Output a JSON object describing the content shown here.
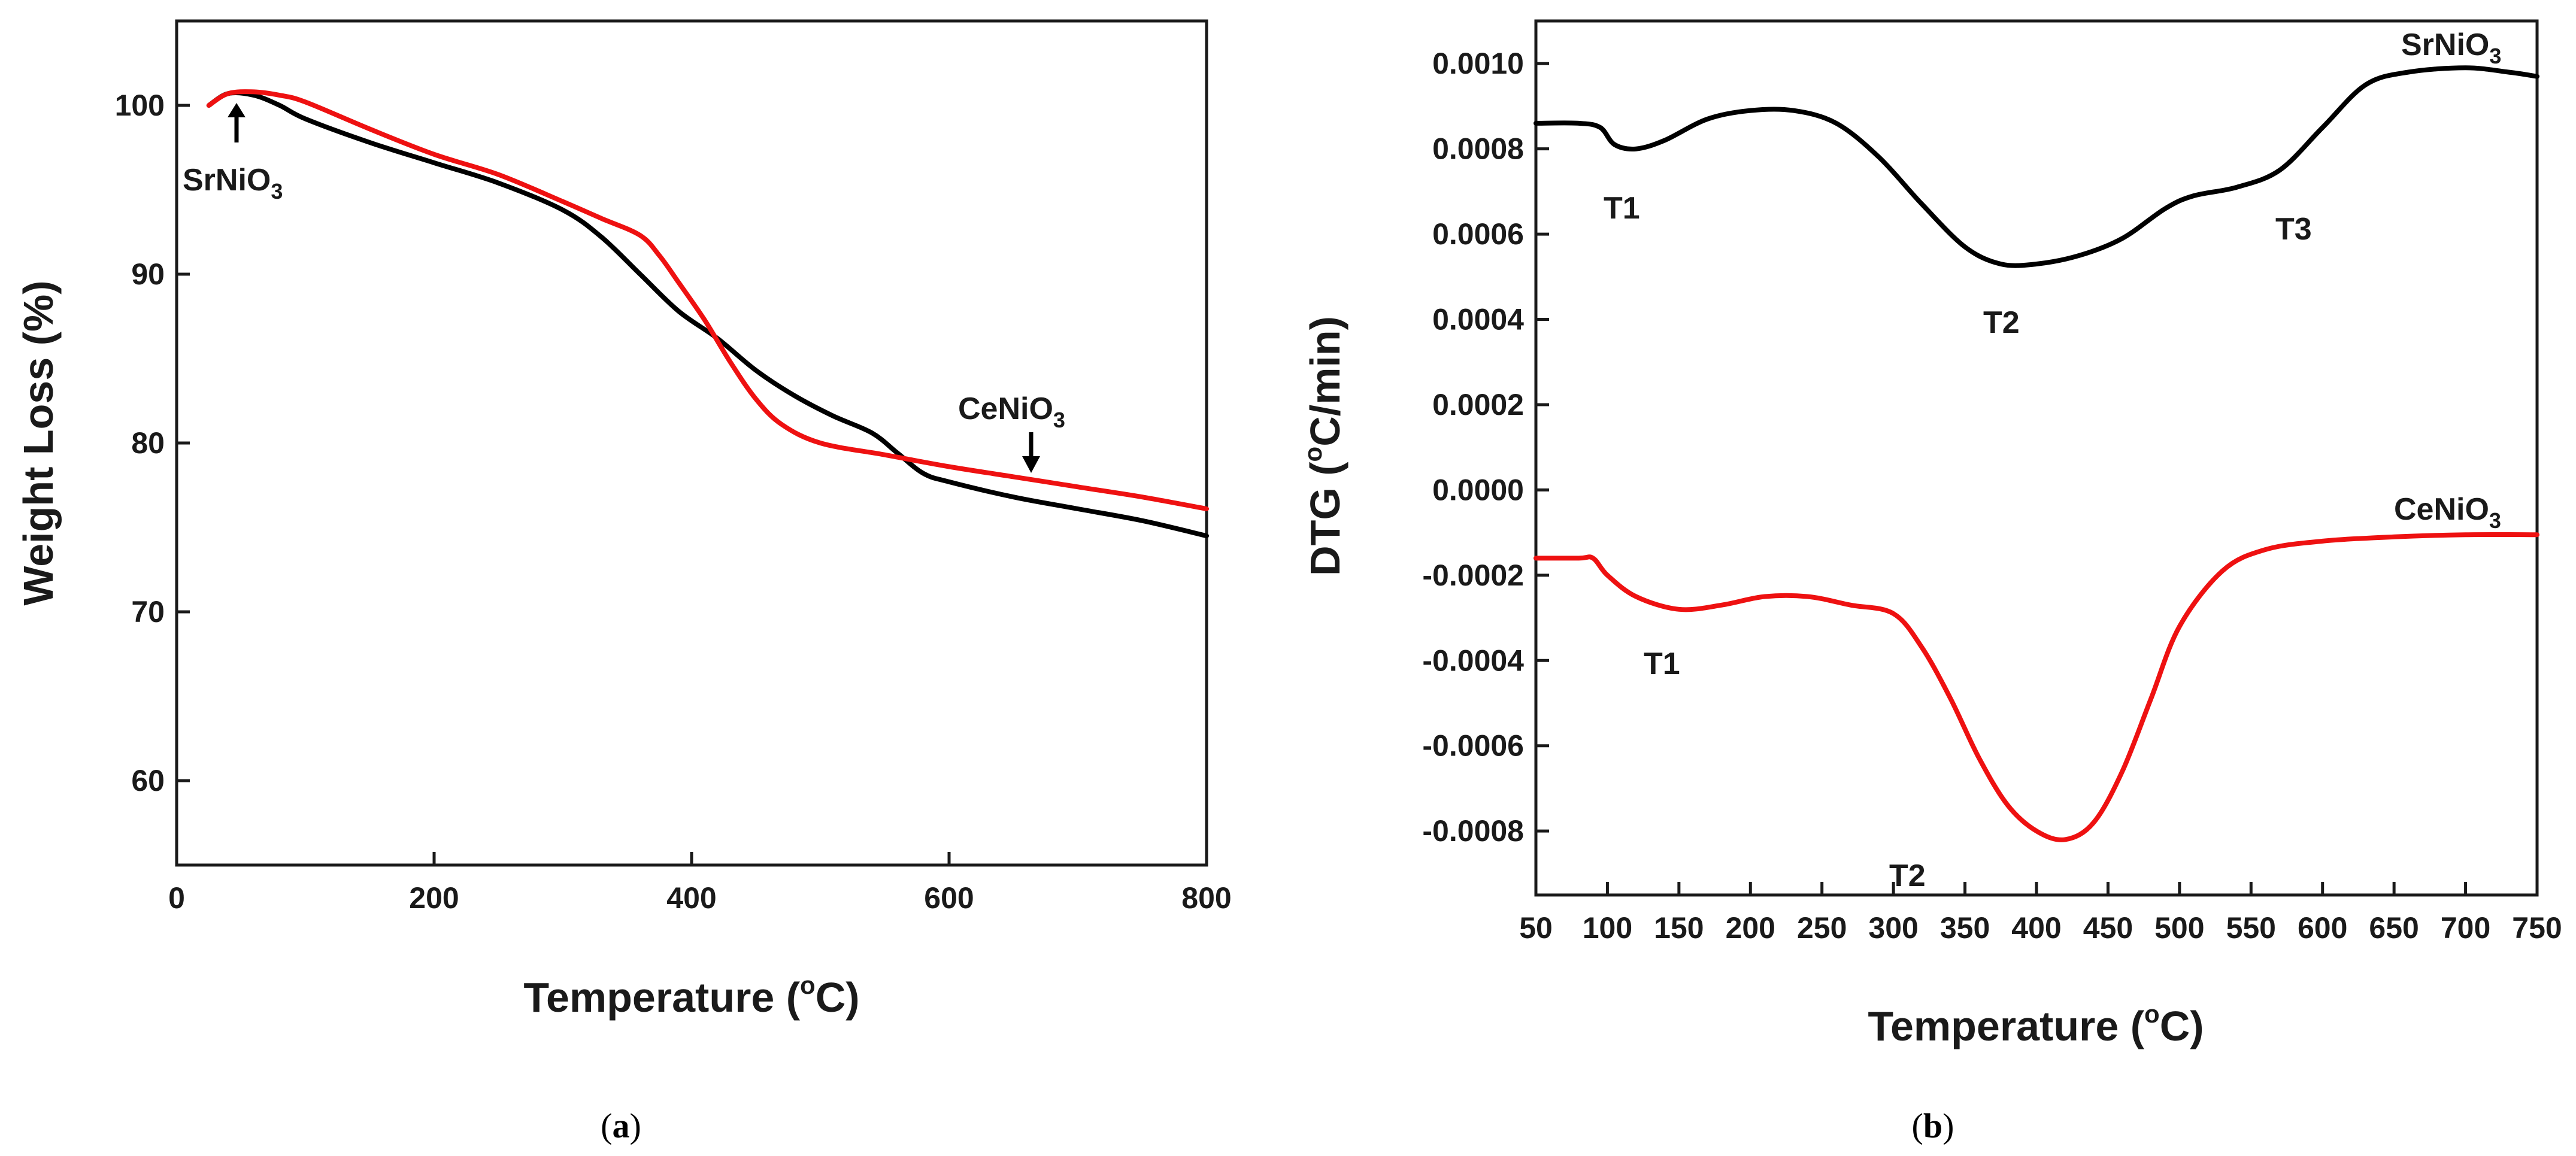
{
  "chart_data": [
    {
      "type": "line",
      "panel": "a",
      "xlabel": "Temperature (°C)",
      "xlabel_main": "Temperature (",
      "xlabel_sup": "o",
      "xlabel_end": "C)",
      "ylabel": "Weight Loss (%)",
      "xlim": [
        0,
        800
      ],
      "ylim": [
        55,
        105
      ],
      "xticks": [
        0,
        200,
        400,
        600,
        800
      ],
      "yticks": [
        60,
        70,
        80,
        90,
        100
      ],
      "series": [
        {
          "name": "SrNiO3",
          "color": "#000000",
          "x": [
            25,
            40,
            60,
            80,
            100,
            150,
            200,
            250,
            300,
            330,
            360,
            390,
            420,
            450,
            480,
            510,
            540,
            560,
            580,
            600,
            650,
            700,
            750,
            800
          ],
          "y": [
            100.0,
            100.7,
            100.6,
            100.0,
            99.2,
            97.8,
            96.6,
            95.4,
            93.8,
            92.2,
            90.0,
            87.8,
            86.2,
            84.3,
            82.8,
            81.6,
            80.6,
            79.4,
            78.2,
            77.7,
            76.8,
            76.1,
            75.4,
            74.5
          ]
        },
        {
          "name": "CeNiO3",
          "color": "#ee1111",
          "x": [
            25,
            40,
            60,
            80,
            100,
            150,
            200,
            250,
            300,
            330,
            360,
            375,
            390,
            410,
            430,
            450,
            470,
            500,
            550,
            600,
            650,
            700,
            750,
            800
          ],
          "y": [
            100.0,
            100.7,
            100.8,
            100.6,
            100.2,
            98.6,
            97.1,
            95.9,
            94.3,
            93.3,
            92.3,
            91.1,
            89.5,
            87.3,
            84.8,
            82.6,
            81.1,
            80.0,
            79.3,
            78.6,
            78.0,
            77.4,
            76.8,
            76.1
          ]
        }
      ],
      "annotations": [
        {
          "label_main": "SrNiO",
          "label_sub": "3",
          "series": "SrNiO3"
        },
        {
          "label_main": "CeNiO",
          "label_sub": "3",
          "series": "CeNiO3"
        }
      ]
    },
    {
      "type": "line",
      "panel": "b",
      "xlabel": "Temperature (°C)",
      "xlabel_main": "Temperature (",
      "xlabel_sup": "o",
      "xlabel_end": "C)",
      "ylabel": "DTG (°C/min)",
      "ylabel_main": "DTG (",
      "ylabel_sup": "o",
      "ylabel_end": "C/min)",
      "xlim": [
        50,
        750
      ],
      "ylim": [
        -0.00095,
        0.0011
      ],
      "xticks": [
        50,
        100,
        150,
        200,
        250,
        300,
        350,
        400,
        450,
        500,
        550,
        600,
        650,
        700,
        750
      ],
      "yticks": [
        "0.0010",
        "0.0008",
        "0.0006",
        "0.0004",
        "0.0002",
        "0.0000",
        "-0.0002",
        "-0.0004",
        "-0.0006",
        "-0.0008"
      ],
      "series": [
        {
          "name": "SrNiO3",
          "color": "#000000",
          "x": [
            50,
            80,
            95,
            105,
            120,
            140,
            170,
            200,
            230,
            260,
            290,
            320,
            350,
            375,
            400,
            430,
            460,
            490,
            510,
            540,
            570,
            600,
            630,
            660,
            700,
            730,
            750
          ],
          "y": [
            0.00086,
            0.00086,
            0.00085,
            0.00081,
            0.0008,
            0.00082,
            0.00087,
            0.00089,
            0.00089,
            0.00086,
            0.00078,
            0.00067,
            0.00057,
            0.00053,
            0.00053,
            0.00055,
            0.00059,
            0.00066,
            0.00069,
            0.00071,
            0.00075,
            0.00085,
            0.00095,
            0.00098,
            0.00099,
            0.00098,
            0.00097
          ]
        },
        {
          "name": "CeNiO3",
          "color": "#ee1111",
          "x": [
            50,
            80,
            90,
            100,
            120,
            150,
            180,
            210,
            240,
            270,
            300,
            320,
            340,
            360,
            380,
            400,
            420,
            440,
            460,
            480,
            500,
            530,
            560,
            600,
            650,
            700,
            750
          ],
          "y": [
            -0.00016,
            -0.00016,
            -0.00016,
            -0.0002,
            -0.00025,
            -0.00028,
            -0.00027,
            -0.00025,
            -0.00025,
            -0.00027,
            -0.00029,
            -0.00037,
            -0.00049,
            -0.00063,
            -0.00074,
            -0.0008,
            -0.00082,
            -0.00078,
            -0.00066,
            -0.00049,
            -0.00032,
            -0.00019,
            -0.00014,
            -0.00012,
            -0.00011,
            -0.000105,
            -0.000105
          ]
        }
      ],
      "annotations": [
        {
          "label_main": "SrNiO",
          "label_sub": "3",
          "series": "SrNiO3"
        },
        {
          "label_main": "CeNiO",
          "label_sub": "3",
          "series": "CeNiO3"
        },
        {
          "label": "T1",
          "series": "SrNiO3"
        },
        {
          "label": "T2",
          "series": "SrNiO3"
        },
        {
          "label": "T3",
          "series": "SrNiO3"
        },
        {
          "label": "T1",
          "series": "CeNiO3"
        },
        {
          "label": "T2",
          "series": "CeNiO3"
        }
      ]
    }
  ],
  "panel_labels": {
    "a": "a",
    "b": "b",
    "open": "(",
    "close": ")"
  }
}
